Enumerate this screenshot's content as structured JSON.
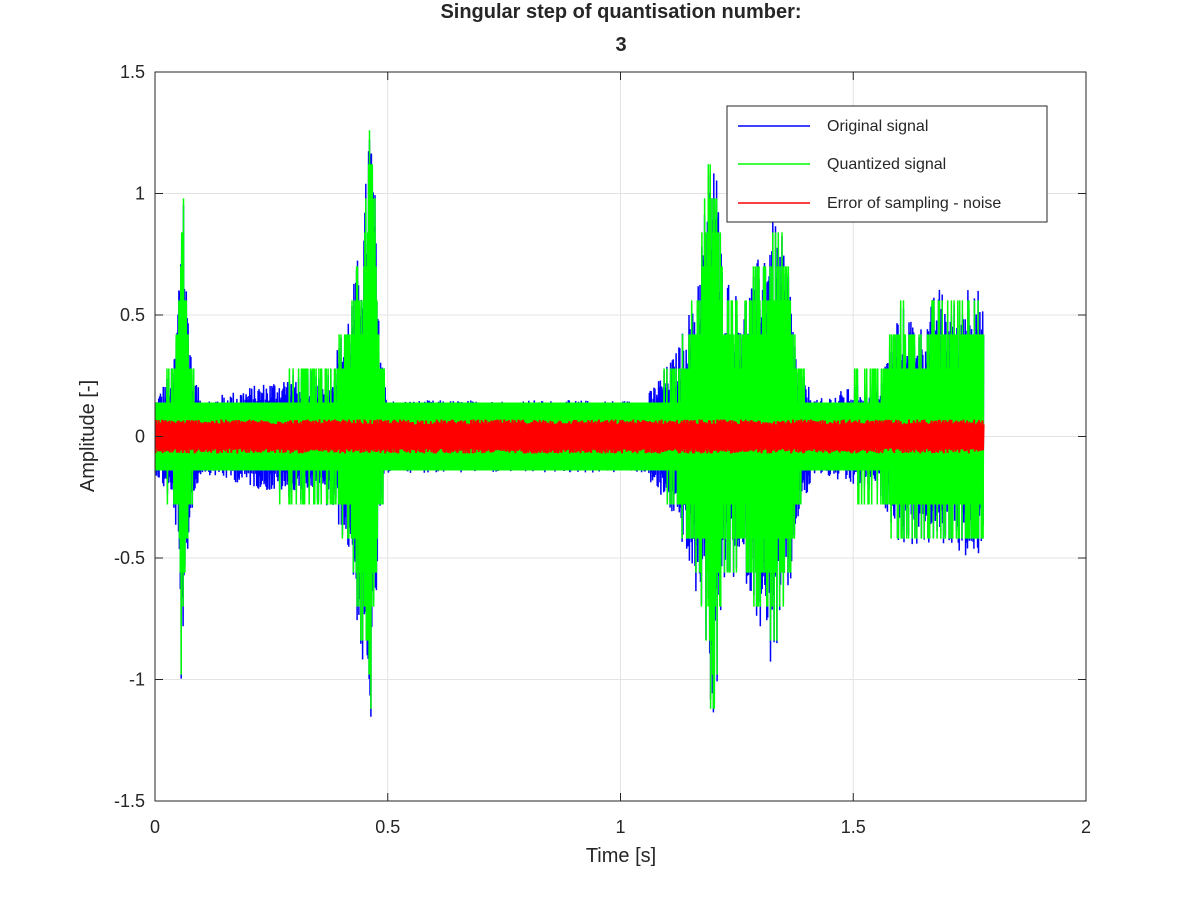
{
  "chart_data": {
    "type": "line",
    "title_line1": "Singular step of quantisation number:",
    "title_line2": "3",
    "xlabel": "Time [s]",
    "ylabel": "Amplitude [-]",
    "xlim": [
      0,
      2
    ],
    "ylim": [
      -1.5,
      1.5
    ],
    "xticks": [
      0,
      0.5,
      1,
      1.5,
      2
    ],
    "xtick_labels": [
      "0",
      "0.5",
      "1",
      "1.5",
      "2"
    ],
    "yticks": [
      -1.5,
      -1,
      -0.5,
      0,
      0.5,
      1,
      1.5
    ],
    "ytick_labels": [
      "-1.5",
      "-1",
      "-0.5",
      "0",
      "0.5",
      "1",
      "1.5"
    ],
    "grid": true,
    "legend_position": "top-right",
    "duration": 1.78,
    "series": [
      {
        "name": "Original signal",
        "color": "#0000ff",
        "envelope": {
          "t": [
            0,
            0.04,
            0.05,
            0.06,
            0.065,
            0.07,
            0.08,
            0.1,
            0.38,
            0.42,
            0.45,
            0.46,
            0.47,
            0.48,
            0.5,
            1.05,
            1.12,
            1.16,
            1.18,
            1.2,
            1.22,
            1.26,
            1.29,
            1.32,
            1.34,
            1.36,
            1.38,
            1.42,
            1.56,
            1.6,
            1.65,
            1.68,
            1.72,
            1.76,
            1.78
          ],
          "upper": [
            0.15,
            0.3,
            0.6,
            1.27,
            0.7,
            0.6,
            0.3,
            0.15,
            0.3,
            0.55,
            0.92,
            1.4,
            1.2,
            0.5,
            0.15,
            0.15,
            0.35,
            0.6,
            0.95,
            1.32,
            0.7,
            0.55,
            0.7,
            0.9,
            0.88,
            0.72,
            0.3,
            0.15,
            0.25,
            0.55,
            0.45,
            0.62,
            0.55,
            0.7,
            0.5
          ],
          "lower": [
            -0.15,
            -0.3,
            -0.5,
            -1.32,
            -0.7,
            -0.5,
            -0.3,
            -0.15,
            -0.3,
            -0.5,
            -1.07,
            -1.31,
            -1.0,
            -0.45,
            -0.15,
            -0.15,
            -0.35,
            -0.65,
            -0.75,
            -1.28,
            -0.65,
            -0.55,
            -0.72,
            -0.95,
            -0.88,
            -0.72,
            -0.35,
            -0.15,
            -0.25,
            -0.45,
            -0.45,
            -0.45,
            -0.45,
            -0.57,
            -0.4
          ]
        }
      },
      {
        "name": "Quantized signal",
        "color": "#00ff00",
        "quantization_step": 0.14,
        "envelope": {
          "t": [
            0,
            0.04,
            0.05,
            0.06,
            0.065,
            0.07,
            0.08,
            0.1,
            0.38,
            0.42,
            0.45,
            0.46,
            0.47,
            0.48,
            0.5,
            1.05,
            1.12,
            1.16,
            1.18,
            1.2,
            1.22,
            1.26,
            1.29,
            1.32,
            1.34,
            1.36,
            1.38,
            1.42,
            1.56,
            1.6,
            1.65,
            1.68,
            1.72,
            1.76,
            1.78
          ],
          "upper": [
            0.14,
            0.28,
            0.56,
            1.26,
            0.7,
            0.56,
            0.28,
            0.14,
            0.28,
            0.56,
            0.84,
            1.4,
            1.12,
            0.42,
            0.14,
            0.14,
            0.28,
            0.56,
            0.98,
            1.26,
            0.7,
            0.56,
            0.7,
            0.84,
            0.84,
            0.7,
            0.28,
            0.14,
            0.28,
            0.56,
            0.42,
            0.56,
            0.56,
            0.7,
            0.42
          ],
          "lower": [
            -0.14,
            -0.28,
            -0.42,
            -1.26,
            -0.7,
            -0.42,
            -0.28,
            -0.14,
            -0.28,
            -0.42,
            -0.98,
            -1.26,
            -0.98,
            -0.42,
            -0.14,
            -0.14,
            -0.28,
            -0.56,
            -0.7,
            -1.26,
            -0.56,
            -0.56,
            -0.7,
            -0.84,
            -0.84,
            -0.7,
            -0.28,
            -0.14,
            -0.28,
            -0.42,
            -0.42,
            -0.42,
            -0.42,
            -0.56,
            -0.42
          ]
        }
      },
      {
        "name": "Error of sampling - noise",
        "color": "#ff0000",
        "band": [
          -0.07,
          0.07
        ]
      }
    ]
  }
}
